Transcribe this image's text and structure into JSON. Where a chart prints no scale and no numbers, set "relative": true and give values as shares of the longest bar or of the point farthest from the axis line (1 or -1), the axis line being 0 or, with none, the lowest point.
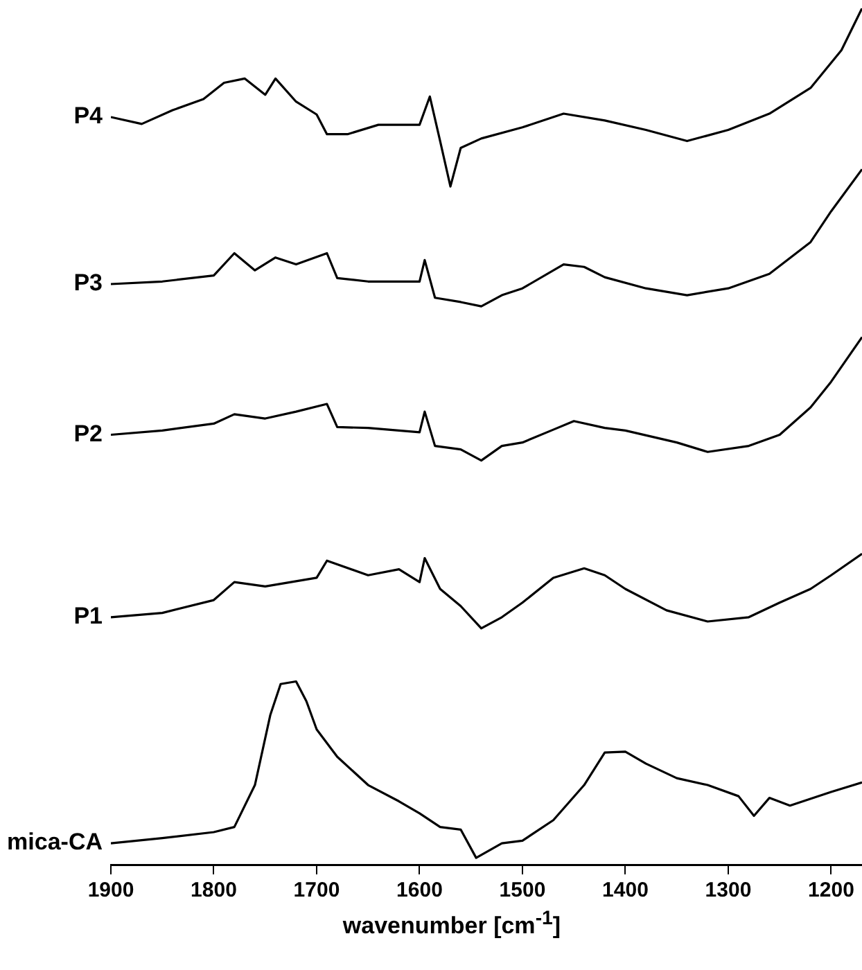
{
  "chart_data": {
    "type": "line",
    "relative": true,
    "xlabel": "wavenumber [cm$^{-1}$]",
    "xlim": [
      1900,
      1170
    ],
    "xticks": [
      1900,
      1800,
      1700,
      1600,
      1500,
      1400,
      1300,
      1200
    ],
    "series": [
      {
        "name": "P4",
        "color": "#000000",
        "x": [
          1900,
          1870,
          1840,
          1810,
          1790,
          1770,
          1750,
          1740,
          1720,
          1700,
          1690,
          1670,
          1640,
          1600,
          1590,
          1580,
          1570,
          1560,
          1540,
          1500,
          1460,
          1420,
          1380,
          1340,
          1300,
          1260,
          1220,
          1190,
          1170
        ],
        "values": [
          0.873,
          0.865,
          0.881,
          0.894,
          0.913,
          0.918,
          0.899,
          0.918,
          0.891,
          0.876,
          0.853,
          0.853,
          0.864,
          0.864,
          0.897,
          0.845,
          0.792,
          0.837,
          0.848,
          0.861,
          0.877,
          0.869,
          0.858,
          0.845,
          0.858,
          0.877,
          0.907,
          0.951,
          1.0
        ]
      },
      {
        "name": "P3",
        "color": "#000000",
        "x": [
          1900,
          1850,
          1800,
          1780,
          1760,
          1740,
          1720,
          1690,
          1680,
          1650,
          1600,
          1595,
          1585,
          1560,
          1540,
          1520,
          1500,
          1460,
          1440,
          1420,
          1380,
          1340,
          1300,
          1260,
          1220,
          1200,
          1170
        ],
        "values": [
          0.678,
          0.681,
          0.688,
          0.714,
          0.694,
          0.709,
          0.701,
          0.714,
          0.685,
          0.681,
          0.681,
          0.706,
          0.662,
          0.657,
          0.652,
          0.665,
          0.673,
          0.701,
          0.698,
          0.686,
          0.673,
          0.665,
          0.673,
          0.69,
          0.727,
          0.763,
          0.812
        ]
      },
      {
        "name": "P2",
        "color": "#000000",
        "x": [
          1900,
          1850,
          1800,
          1780,
          1750,
          1720,
          1690,
          1680,
          1650,
          1600,
          1595,
          1585,
          1560,
          1540,
          1520,
          1500,
          1470,
          1450,
          1420,
          1400,
          1350,
          1320,
          1280,
          1250,
          1220,
          1200,
          1170
        ],
        "values": [
          0.502,
          0.507,
          0.515,
          0.526,
          0.521,
          0.529,
          0.538,
          0.511,
          0.51,
          0.505,
          0.529,
          0.489,
          0.485,
          0.472,
          0.489,
          0.493,
          0.508,
          0.518,
          0.51,
          0.507,
          0.493,
          0.482,
          0.489,
          0.502,
          0.534,
          0.564,
          0.616
        ]
      },
      {
        "name": "P1",
        "color": "#000000",
        "x": [
          1900,
          1850,
          1800,
          1780,
          1750,
          1700,
          1690,
          1650,
          1620,
          1600,
          1595,
          1580,
          1560,
          1540,
          1520,
          1500,
          1470,
          1440,
          1420,
          1400,
          1360,
          1320,
          1280,
          1250,
          1220,
          1200,
          1170
        ],
        "values": [
          0.289,
          0.294,
          0.309,
          0.33,
          0.325,
          0.335,
          0.355,
          0.338,
          0.345,
          0.33,
          0.358,
          0.322,
          0.302,
          0.276,
          0.289,
          0.306,
          0.335,
          0.346,
          0.338,
          0.322,
          0.297,
          0.284,
          0.289,
          0.306,
          0.322,
          0.338,
          0.363
        ]
      },
      {
        "name": "mica-CA",
        "color": "#000000",
        "x": [
          1900,
          1850,
          1800,
          1780,
          1760,
          1745,
          1735,
          1720,
          1710,
          1700,
          1680,
          1650,
          1620,
          1600,
          1580,
          1560,
          1545,
          1520,
          1500,
          1470,
          1440,
          1420,
          1400,
          1380,
          1350,
          1320,
          1290,
          1275,
          1260,
          1240,
          1200,
          1170
        ],
        "values": [
          0.025,
          0.031,
          0.038,
          0.044,
          0.093,
          0.175,
          0.211,
          0.214,
          0.191,
          0.158,
          0.126,
          0.093,
          0.074,
          0.06,
          0.044,
          0.041,
          0.008,
          0.025,
          0.028,
          0.052,
          0.093,
          0.131,
          0.132,
          0.118,
          0.101,
          0.093,
          0.08,
          0.057,
          0.078,
          0.069,
          0.085,
          0.096
        ]
      }
    ]
  }
}
